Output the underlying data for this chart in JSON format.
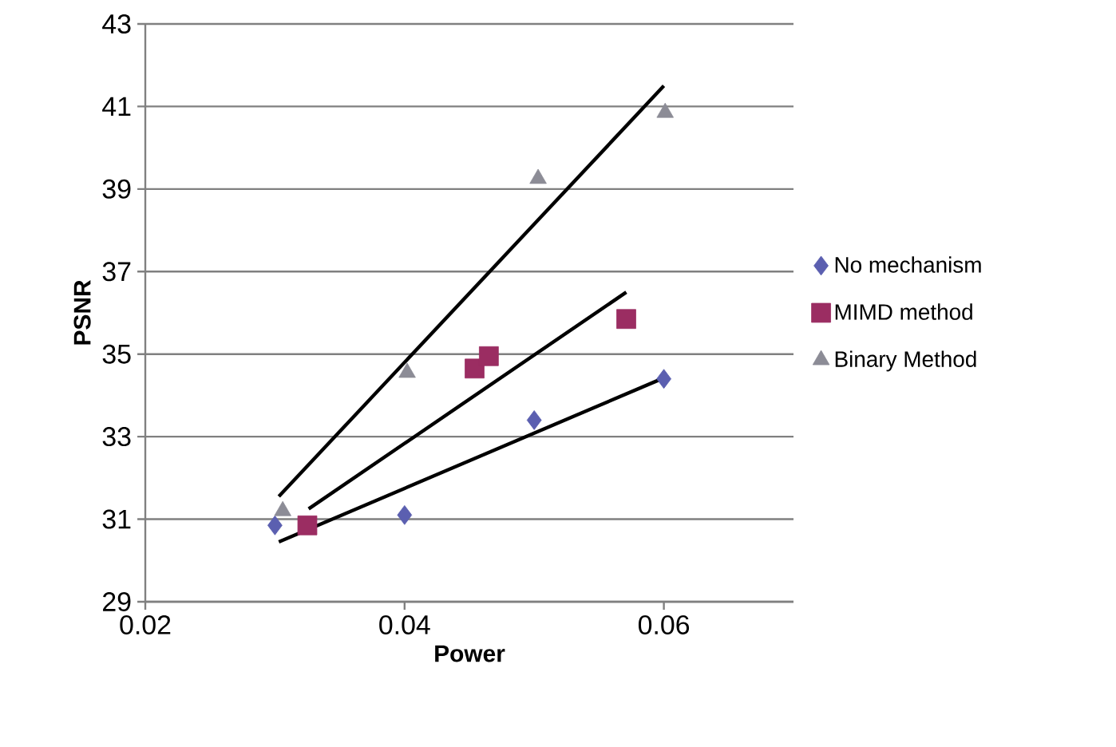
{
  "chart_data": {
    "type": "scatter",
    "xlabel": "Power",
    "ylabel": "PSNR",
    "xlim": [
      0.02,
      0.07
    ],
    "xticks": [
      0.02,
      0.04,
      0.06
    ],
    "ylim": [
      29,
      43
    ],
    "yticks": [
      29,
      31,
      33,
      35,
      37,
      39,
      41,
      43
    ],
    "grid": "y",
    "legend": "right",
    "series": [
      {
        "name": "No mechanism",
        "color": "#5b5fb0",
        "marker": "diamond",
        "x": [
          0.03,
          0.04,
          0.05,
          0.06
        ],
        "values": [
          30.85,
          31.1,
          33.4,
          34.4
        ]
      },
      {
        "name": "MIMD method",
        "color": "#9b2d62",
        "marker": "square",
        "x": [
          0.0325,
          0.0454,
          0.0465,
          0.0571
        ],
        "values": [
          30.85,
          34.65,
          34.95,
          35.85
        ]
      },
      {
        "name": "Binary Method",
        "color": "#8c8c96",
        "marker": "triangle",
        "x": [
          0.0306,
          0.0402,
          0.0503,
          0.0601
        ],
        "values": [
          31.2,
          34.55,
          39.25,
          40.85
        ]
      },
      {
        "type": "line",
        "color": "#000000",
        "marker": "none",
        "x": [
          0.0303,
          0.0602
        ],
        "values": [
          30.45,
          34.45
        ]
      },
      {
        "type": "line",
        "color": "#000000",
        "marker": "none",
        "x": [
          0.0326,
          0.0571
        ],
        "values": [
          31.25,
          36.5
        ]
      },
      {
        "type": "line",
        "color": "#000000",
        "marker": "none",
        "x": [
          0.0303,
          0.06
        ],
        "values": [
          31.55,
          41.5
        ]
      }
    ]
  }
}
